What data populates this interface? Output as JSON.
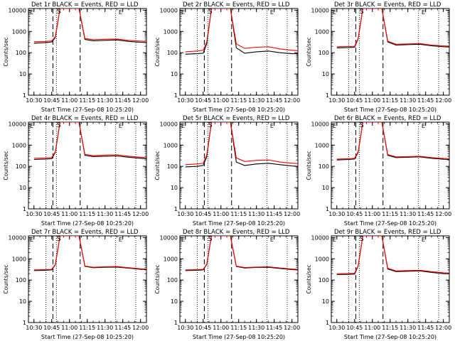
{
  "common": {
    "ylabel": "Counts/sec",
    "xlabel": "Start Time (27-Sep-08 10:25:20)",
    "xticks": [
      "10:30",
      "10:45",
      "11:00",
      "11:15",
      "11:30",
      "11:45",
      "12:00"
    ],
    "yticks": [
      "1",
      "10",
      "100",
      "1000",
      "10000"
    ],
    "marker_S": "S",
    "marker_E": "E",
    "corner_label": "E",
    "colors": {
      "events": "#000000",
      "lld": "#ff0000",
      "axes": "#000000"
    }
  },
  "chart_data": [
    {
      "title": "Det 1r BLACK = Events, RED = LLD",
      "type": "line",
      "ylog": true,
      "xlim": [
        "10:25:20",
        "12:05"
      ],
      "ylim": [
        1,
        12000
      ],
      "series": [
        {
          "name": "Events",
          "x": [
            "10:30",
            "10:40",
            "10:45",
            "10:48",
            "10:52",
            "11:08",
            "11:13",
            "11:20",
            "11:30",
            "11:40",
            "11:50",
            "12:00",
            "12:05"
          ],
          "values": [
            280,
            300,
            320,
            520,
            12000,
            12000,
            420,
            360,
            380,
            400,
            340,
            310,
            300
          ]
        },
        {
          "name": "LLD",
          "x": [
            "10:30",
            "10:40",
            "10:45",
            "10:48",
            "10:52",
            "11:08",
            "11:13",
            "11:20",
            "11:30",
            "11:40",
            "11:50",
            "12:00",
            "12:05"
          ],
          "values": [
            330,
            340,
            360,
            560,
            12000,
            12000,
            470,
            410,
            430,
            440,
            380,
            350,
            340
          ]
        }
      ]
    },
    {
      "title": "Det 2r BLACK = Events, RED = LLD",
      "type": "line",
      "ylog": true,
      "xlim": [
        "10:25:20",
        "12:05"
      ],
      "ylim": [
        1,
        12000
      ],
      "series": [
        {
          "name": "Events",
          "x": [
            "10:30",
            "10:40",
            "10:45",
            "10:48",
            "10:52",
            "11:08",
            "11:13",
            "11:20",
            "11:30",
            "11:40",
            "11:50",
            "12:00",
            "12:05"
          ],
          "values": [
            85,
            90,
            95,
            260,
            12000,
            12000,
            170,
            95,
            110,
            120,
            100,
            90,
            90
          ]
        },
        {
          "name": "LLD",
          "x": [
            "10:30",
            "10:40",
            "10:45",
            "10:48",
            "10:52",
            "11:08",
            "11:13",
            "11:20",
            "11:30",
            "11:40",
            "11:50",
            "12:00",
            "12:05"
          ],
          "values": [
            110,
            120,
            130,
            320,
            12000,
            12000,
            260,
            160,
            180,
            190,
            150,
            130,
            125
          ]
        }
      ]
    },
    {
      "title": "Det 3r BLACK = Events, RED = LLD",
      "type": "line",
      "ylog": true,
      "xlim": [
        "10:25:20",
        "12:05"
      ],
      "ylim": [
        1,
        12000
      ],
      "series": [
        {
          "name": "Events",
          "x": [
            "10:30",
            "10:40",
            "10:45",
            "10:48",
            "10:52",
            "11:08",
            "11:13",
            "11:20",
            "11:30",
            "11:40",
            "11:50",
            "12:00",
            "12:05"
          ],
          "values": [
            170,
            175,
            180,
            450,
            12000,
            12000,
            320,
            230,
            240,
            250,
            210,
            190,
            185
          ]
        },
        {
          "name": "LLD",
          "x": [
            "10:30",
            "10:40",
            "10:45",
            "10:48",
            "10:52",
            "11:08",
            "11:13",
            "11:20",
            "11:30",
            "11:40",
            "11:50",
            "12:00",
            "12:05"
          ],
          "values": [
            190,
            195,
            200,
            480,
            12000,
            12000,
            350,
            250,
            260,
            270,
            230,
            210,
            205
          ]
        }
      ]
    },
    {
      "title": "Det 4r BLACK = Events, RED = LLD",
      "type": "line",
      "ylog": true,
      "xlim": [
        "10:25:20",
        "12:05"
      ],
      "ylim": [
        1,
        12000
      ],
      "series": [
        {
          "name": "Events",
          "x": [
            "10:30",
            "10:40",
            "10:45",
            "10:48",
            "10:52",
            "11:08",
            "11:13",
            "11:20",
            "11:30",
            "11:40",
            "11:50",
            "12:00",
            "12:05"
          ],
          "values": [
            210,
            220,
            230,
            450,
            12000,
            12000,
            330,
            290,
            300,
            310,
            270,
            240,
            230
          ]
        },
        {
          "name": "LLD",
          "x": [
            "10:30",
            "10:40",
            "10:45",
            "10:48",
            "10:52",
            "11:08",
            "11:13",
            "11:20",
            "11:30",
            "11:40",
            "11:50",
            "12:00",
            "12:05"
          ],
          "values": [
            240,
            250,
            260,
            490,
            12000,
            12000,
            370,
            320,
            340,
            350,
            300,
            270,
            260
          ]
        }
      ]
    },
    {
      "title": "Det 5r BLACK = Events, RED = LLD",
      "type": "line",
      "ylog": true,
      "xlim": [
        "10:25:20",
        "12:05"
      ],
      "ylim": [
        1,
        12000
      ],
      "series": [
        {
          "name": "Events",
          "x": [
            "10:30",
            "10:40",
            "10:45",
            "10:48",
            "10:52",
            "11:08",
            "11:13",
            "11:20",
            "11:30",
            "11:40",
            "11:50",
            "12:00",
            "12:05"
          ],
          "values": [
            95,
            100,
            110,
            280,
            12000,
            12000,
            160,
            110,
            130,
            140,
            120,
            105,
            100
          ]
        },
        {
          "name": "LLD",
          "x": [
            "10:30",
            "10:40",
            "10:45",
            "10:48",
            "10:52",
            "11:08",
            "11:13",
            "11:20",
            "11:30",
            "11:40",
            "11:50",
            "12:00",
            "12:05"
          ],
          "values": [
            120,
            130,
            140,
            340,
            12000,
            12000,
            250,
            170,
            190,
            200,
            160,
            140,
            135
          ]
        }
      ]
    },
    {
      "title": "Det 6r BLACK = Events, RED = LLD",
      "type": "line",
      "ylog": true,
      "xlim": [
        "10:25:20",
        "12:05"
      ],
      "ylim": [
        1,
        12000
      ],
      "series": [
        {
          "name": "Events",
          "x": [
            "10:30",
            "10:40",
            "10:45",
            "10:48",
            "10:52",
            "11:08",
            "11:13",
            "11:20",
            "11:30",
            "11:40",
            "11:50",
            "12:00",
            "12:05"
          ],
          "values": [
            200,
            210,
            220,
            460,
            12000,
            12000,
            330,
            260,
            270,
            280,
            240,
            215,
            210
          ]
        },
        {
          "name": "LLD",
          "x": [
            "10:30",
            "10:40",
            "10:45",
            "10:48",
            "10:52",
            "11:08",
            "11:13",
            "11:20",
            "11:30",
            "11:40",
            "11:50",
            "12:00",
            "12:05"
          ],
          "values": [
            220,
            230,
            240,
            490,
            12000,
            12000,
            360,
            280,
            290,
            300,
            260,
            235,
            230
          ]
        }
      ]
    },
    {
      "title": "Det 7r BLACK = Events, RED = LLD",
      "type": "line",
      "ylog": true,
      "xlim": [
        "10:25:20",
        "12:05"
      ],
      "ylim": [
        1,
        12000
      ],
      "series": [
        {
          "name": "Events",
          "x": [
            "10:30",
            "10:40",
            "10:45",
            "10:48",
            "10:52",
            "11:08",
            "11:13",
            "11:20",
            "11:30",
            "11:40",
            "11:50",
            "12:00",
            "12:05"
          ],
          "values": [
            280,
            290,
            300,
            520,
            12000,
            12000,
            440,
            380,
            400,
            410,
            360,
            320,
            310
          ]
        },
        {
          "name": "LLD",
          "x": [
            "10:30",
            "10:40",
            "10:45",
            "10:48",
            "10:52",
            "11:08",
            "11:13",
            "11:20",
            "11:30",
            "11:40",
            "11:50",
            "12:00",
            "12:05"
          ],
          "values": [
            300,
            310,
            320,
            540,
            12000,
            12000,
            460,
            400,
            420,
            430,
            380,
            340,
            330
          ]
        }
      ]
    },
    {
      "title": "Det 8r BLACK = Events, RED = LLD",
      "type": "line",
      "ylog": true,
      "xlim": [
        "10:25:20",
        "12:05"
      ],
      "ylim": [
        1,
        12000
      ],
      "series": [
        {
          "name": "Events",
          "x": [
            "10:30",
            "10:40",
            "10:45",
            "10:48",
            "10:52",
            "11:08",
            "11:13",
            "11:20",
            "11:30",
            "11:40",
            "11:50",
            "12:00",
            "12:05"
          ],
          "values": [
            280,
            290,
            300,
            540,
            12000,
            12000,
            430,
            370,
            390,
            400,
            350,
            310,
            300
          ]
        },
        {
          "name": "LLD",
          "x": [
            "10:30",
            "10:40",
            "10:45",
            "10:48",
            "10:52",
            "11:08",
            "11:13",
            "11:20",
            "11:30",
            "11:40",
            "11:50",
            "12:00",
            "12:05"
          ],
          "values": [
            300,
            310,
            320,
            560,
            12000,
            12000,
            450,
            390,
            410,
            420,
            370,
            330,
            320
          ]
        }
      ]
    },
    {
      "title": "Det 9r BLACK = Events, RED = LLD",
      "type": "line",
      "ylog": true,
      "xlim": [
        "10:25:20",
        "12:05"
      ],
      "ylim": [
        1,
        12000
      ],
      "series": [
        {
          "name": "Events",
          "x": [
            "10:30",
            "10:40",
            "10:45",
            "10:48",
            "10:52",
            "11:08",
            "11:13",
            "11:20",
            "11:30",
            "11:40",
            "11:50",
            "12:00",
            "12:05"
          ],
          "values": [
            180,
            185,
            190,
            460,
            12000,
            12000,
            330,
            250,
            260,
            270,
            230,
            200,
            195
          ]
        },
        {
          "name": "LLD",
          "x": [
            "10:30",
            "10:40",
            "10:45",
            "10:48",
            "10:52",
            "11:08",
            "11:13",
            "11:20",
            "11:30",
            "11:40",
            "11:50",
            "12:00",
            "12:05"
          ],
          "values": [
            200,
            205,
            210,
            480,
            12000,
            12000,
            360,
            270,
            280,
            290,
            250,
            220,
            215
          ]
        }
      ]
    }
  ]
}
